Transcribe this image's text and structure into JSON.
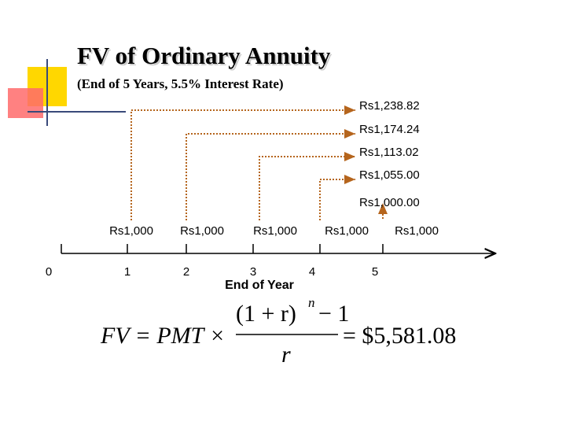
{
  "header": {
    "title": "FV of Ordinary Annuity",
    "subtitle": "(End of 5 Years, 5.5% Interest Rate)"
  },
  "future_values": [
    "Rs1,238.82",
    "Rs1,174.24",
    "Rs1,113.02",
    "Rs1,055.00",
    "Rs1,000.00"
  ],
  "payments": [
    "Rs1,000",
    "Rs1,000",
    "Rs1,000",
    "Rs1,000",
    "Rs1,000"
  ],
  "timeline": {
    "labels": [
      "0",
      "1",
      "2",
      "3",
      "4",
      "5"
    ],
    "axis_label": "End of Year"
  },
  "formula": {
    "lhs": "FV = PMT ×",
    "numerator": "(1 + r)",
    "exponent": "n",
    "minus_one": "− 1",
    "denominator": "r",
    "result": "= $5,581.08"
  }
}
